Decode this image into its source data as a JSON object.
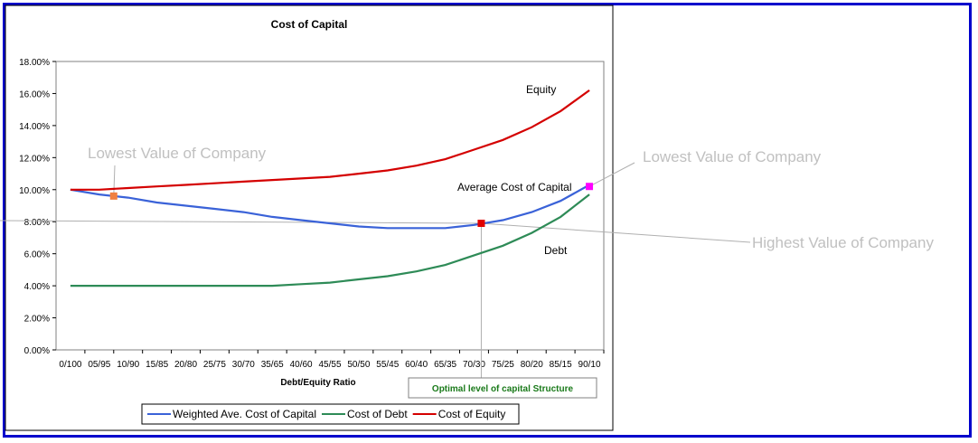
{
  "chart_data": {
    "type": "line",
    "title": "Cost of Capital",
    "xlabel": "Debt/Equity Ratio",
    "ylabel": "",
    "ylim": [
      0,
      18
    ],
    "yticks": [
      "0.00%",
      "2.00%",
      "4.00%",
      "6.00%",
      "8.00%",
      "10.00%",
      "12.00%",
      "14.00%",
      "16.00%",
      "18.00%"
    ],
    "grid": false,
    "legend_placement": "bottom",
    "categories": [
      "0/100",
      "05/95",
      "10/90",
      "15/85",
      "20/80",
      "25/75",
      "30/70",
      "35/65",
      "40/60",
      "45/55",
      "50/50",
      "55/45",
      "60/40",
      "65/35",
      "70/30",
      "75/25",
      "80/20",
      "85/15",
      "90/10"
    ],
    "series": [
      {
        "name": "Weighted Ave. Cost of Capital",
        "color": "#3a62d8",
        "values": [
          10.0,
          9.7,
          9.5,
          9.2,
          9.0,
          8.8,
          8.6,
          8.3,
          8.1,
          7.9,
          7.7,
          7.6,
          7.6,
          7.6,
          7.8,
          8.1,
          8.6,
          9.3,
          10.3
        ]
      },
      {
        "name": "Cost of Debt",
        "color": "#2e8b57",
        "values": [
          4.0,
          4.0,
          4.0,
          4.0,
          4.0,
          4.0,
          4.0,
          4.0,
          4.1,
          4.2,
          4.4,
          4.6,
          4.9,
          5.3,
          5.9,
          6.5,
          7.3,
          8.3,
          9.7
        ]
      },
      {
        "name": "Cost of Equity",
        "color": "#d40000",
        "values": [
          10.0,
          10.0,
          10.1,
          10.2,
          10.3,
          10.4,
          10.5,
          10.6,
          10.7,
          10.8,
          11.0,
          11.2,
          11.5,
          11.9,
          12.5,
          13.1,
          13.9,
          14.9,
          16.2
        ]
      }
    ],
    "series_labels": {
      "equity": "Equity",
      "wacc": "Average Cost of Capital",
      "debt": "Debt"
    },
    "markers": [
      {
        "category_index": 1.5,
        "value": 9.6,
        "color": "#f08040"
      },
      {
        "category_index": 14.25,
        "value": 7.9,
        "color": "#e00000"
      },
      {
        "category_index": 18,
        "value": 10.2,
        "color": "#ff00ff"
      }
    ],
    "annotations": {
      "lowest_left": "Lowest Value of Company",
      "lowest_right": "Lowest Value of Company",
      "highest": "Highest Value of Company",
      "optimal": "Optimal level of capital Structure",
      "optimal_color": "#1a7a1a"
    }
  },
  "frame_color": "#0000cc"
}
